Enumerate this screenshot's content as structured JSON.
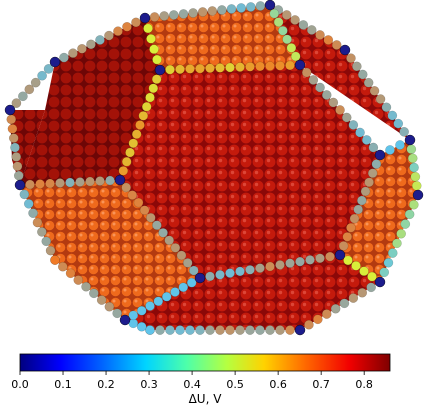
{
  "colorbar": {
    "label": "ΔU, V",
    "ticks": [
      "0.0",
      "0.1",
      "0.2",
      "0.3",
      "0.4",
      "0.5",
      "0.6",
      "0.7",
      "0.8"
    ],
    "range": [
      0.0,
      0.86
    ],
    "colormap": "jet",
    "orientation": "horizontal"
  },
  "visual": {
    "shape": "truncated-octahedron",
    "face_types": [
      "hexagon",
      "square"
    ],
    "hexagon_face_value": 0.85,
    "square_face_value": 0.7,
    "edge_value_range": [
      0.2,
      0.6
    ],
    "vertex_value": 0.05,
    "colors": {
      "dark_red": "#a50b0b",
      "red": "#d01c08",
      "orange": "#f07a26",
      "yellow_green": "#d9ef3a",
      "cyan_blue": "#5fc4ea",
      "navy": "#1c1c8c"
    }
  }
}
